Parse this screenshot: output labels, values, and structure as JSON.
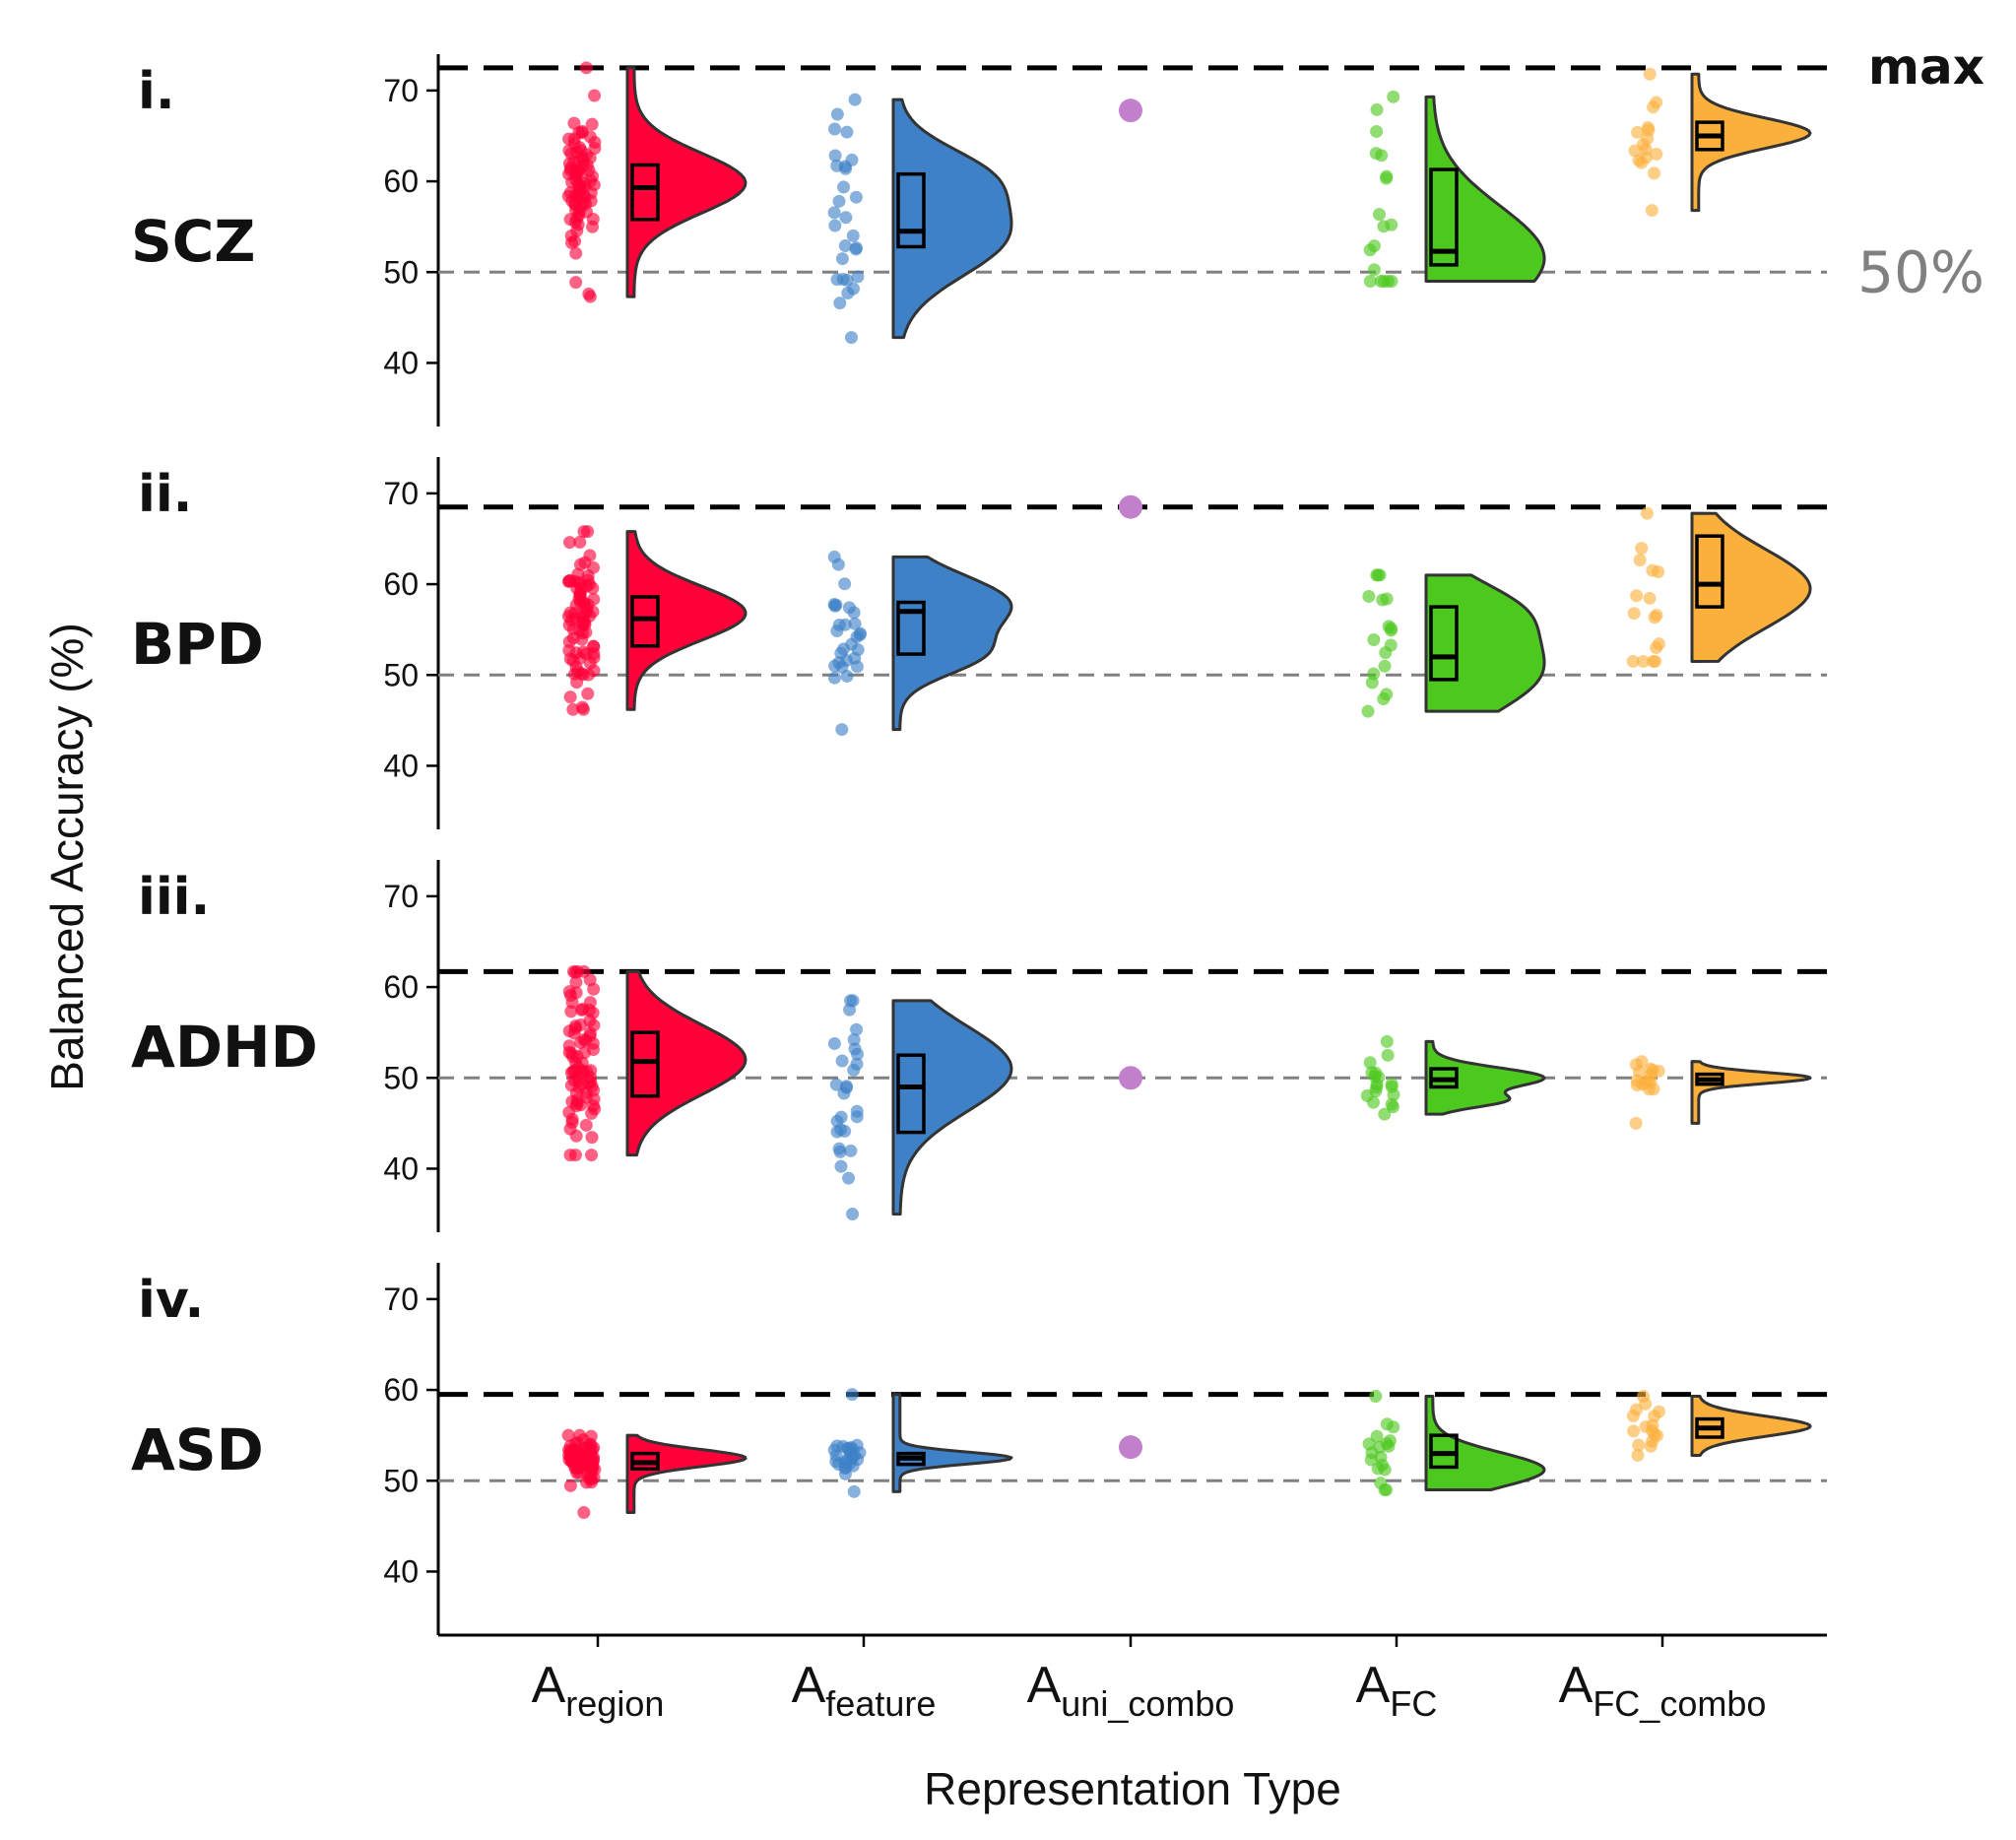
{
  "chart_data": {
    "type": "raincloud",
    "xlabel": "Representation Type",
    "ylabel": "Balanced Accuracy (%)",
    "ylim": [
      33,
      74
    ],
    "yticks": [
      40,
      50,
      60,
      70
    ],
    "reference_lines": {
      "max_label": "max",
      "chance_label": "50%",
      "chance_value": 50
    },
    "categories": [
      {
        "main": "A",
        "sub": "region",
        "color": "#FF0038"
      },
      {
        "main": "A",
        "sub": "feature",
        "color": "#3E81C7"
      },
      {
        "main": "A",
        "sub": "uni_combo",
        "color": "#C17FCC"
      },
      {
        "main": "A",
        "sub": "FC",
        "color": "#4DC81F"
      },
      {
        "main": "A",
        "sub": "FC_combo",
        "color": "#FBB03B"
      }
    ],
    "panels": [
      {
        "roman": "i.",
        "name": "SCZ",
        "max_value": 72.5,
        "groups": [
          {
            "min": 47.3,
            "q1": 55.8,
            "median": 59.3,
            "q3": 61.8,
            "max": 72.5,
            "mode": 59.8,
            "n": 80
          },
          {
            "min": 42.8,
            "q1": 52.8,
            "median": 54.5,
            "q3": 60.8,
            "max": 69.0,
            "mode": 54.0,
            "secondary_mode": 61.0,
            "n": 28
          },
          {
            "single": 67.8
          },
          {
            "min": 49.0,
            "q1": 50.8,
            "median": 52.3,
            "q3": 61.3,
            "max": 69.3,
            "mode": 51.5,
            "n": 18
          },
          {
            "min": 56.8,
            "q1": 63.5,
            "median": 65.0,
            "q3": 66.5,
            "max": 71.8,
            "mode": 65.3,
            "n": 16
          }
        ]
      },
      {
        "roman": "ii.",
        "name": "BPD",
        "max_value": 68.5,
        "groups": [
          {
            "min": 46.2,
            "q1": 53.2,
            "median": 56.2,
            "q3": 58.6,
            "max": 65.8,
            "mode": 56.8,
            "n": 80
          },
          {
            "min": 44.0,
            "q1": 52.3,
            "median": 57.0,
            "q3": 58.0,
            "max": 63.0,
            "mode": 57.8,
            "secondary_mode": 52.0,
            "n": 28
          },
          {
            "single": 68.5
          },
          {
            "min": 46.0,
            "q1": 49.5,
            "median": 52.0,
            "q3": 57.5,
            "max": 61.0,
            "mode": 50.3,
            "secondary_mode": 57.5,
            "n": 18
          },
          {
            "min": 51.5,
            "q1": 57.5,
            "median": 60.0,
            "q3": 65.3,
            "max": 67.8,
            "mode": 59.5,
            "n": 16
          }
        ]
      },
      {
        "roman": "iii.",
        "name": "ADHD",
        "max_value": 61.7,
        "groups": [
          {
            "min": 41.5,
            "q1": 48.0,
            "median": 51.8,
            "q3": 55.0,
            "max": 61.7,
            "mode": 52.0,
            "n": 80
          },
          {
            "min": 35.0,
            "q1": 44.0,
            "median": 49.0,
            "q3": 52.5,
            "max": 58.5,
            "mode": 51.0,
            "n": 28
          },
          {
            "single": 50.0
          },
          {
            "min": 46.0,
            "q1": 49.0,
            "median": 49.8,
            "q3": 51.0,
            "max": 54.0,
            "mode": 50.0,
            "secondary_mode": 47.5,
            "n": 18
          },
          {
            "min": 45.0,
            "q1": 49.3,
            "median": 49.8,
            "q3": 50.4,
            "max": 51.8,
            "mode": 50.0,
            "n": 16
          }
        ]
      },
      {
        "roman": "iv.",
        "name": "ASD",
        "max_value": 59.5,
        "groups": [
          {
            "min": 46.5,
            "q1": 51.3,
            "median": 52.0,
            "q3": 53.0,
            "max": 55.0,
            "mode": 52.5,
            "n": 80
          },
          {
            "min": 48.8,
            "q1": 51.8,
            "median": 52.5,
            "q3": 53.0,
            "max": 59.5,
            "mode": 52.5,
            "n": 28
          },
          {
            "single": 53.7
          },
          {
            "min": 49.0,
            "q1": 51.5,
            "median": 53.0,
            "q3": 55.0,
            "max": 59.3,
            "mode": 51.2,
            "n": 18
          },
          {
            "min": 52.8,
            "q1": 54.8,
            "median": 55.8,
            "q3": 56.8,
            "max": 59.3,
            "mode": 56.0,
            "n": 16
          }
        ]
      }
    ]
  }
}
